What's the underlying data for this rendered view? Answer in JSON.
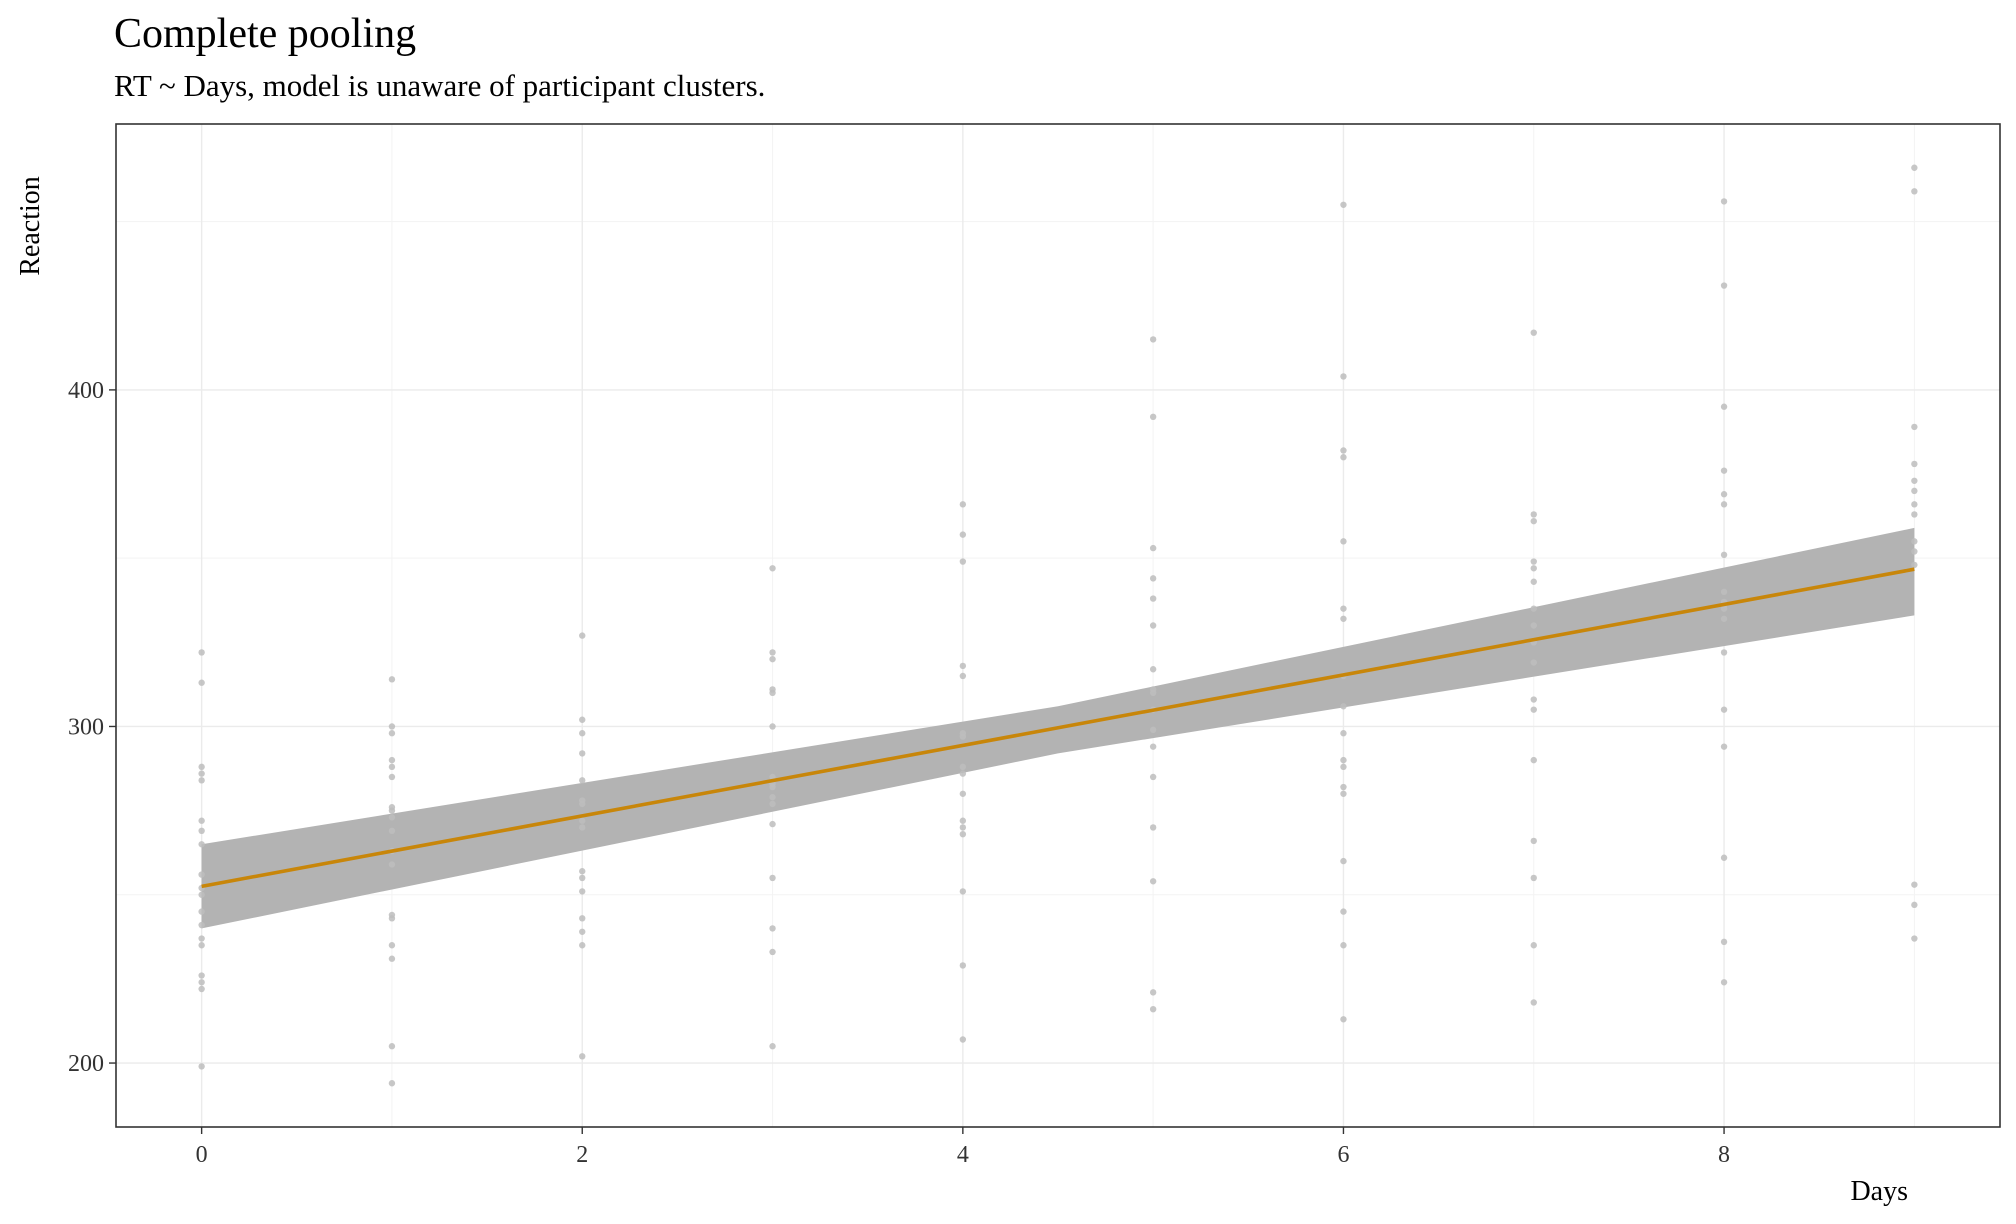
{
  "chart_data": {
    "type": "scatter",
    "title": "Complete pooling",
    "subtitle": "RT ~ Days, model is unaware of participant clusters.",
    "xlabel": "Days",
    "ylabel": "Reaction",
    "xlim": [
      -0.45,
      9.45
    ],
    "ylim": [
      181,
      479
    ],
    "x_ticks": [
      0,
      2,
      4,
      6,
      8
    ],
    "y_ticks": [
      200,
      300,
      400
    ],
    "grid": true,
    "colors": {
      "points": "#bdbdbd",
      "line": "#c8860a",
      "band": "#b3b3b3"
    },
    "fit": {
      "intercept": 252.5,
      "slope": 10.47,
      "ribbon": [
        {
          "x": 0,
          "lower": 240,
          "upper": 265
        },
        {
          "x": 4.5,
          "lower": 292,
          "upper": 306
        },
        {
          "x": 9,
          "lower": 333,
          "upper": 359
        }
      ]
    },
    "points": [
      {
        "x": 0,
        "y": [
          199,
          222,
          224,
          226,
          235,
          237,
          241,
          245,
          250,
          252,
          256,
          265,
          269,
          272,
          284,
          286,
          288,
          313,
          322
        ]
      },
      {
        "x": 1,
        "y": [
          194,
          205,
          231,
          235,
          243,
          244,
          259,
          263,
          269,
          273,
          275,
          276,
          285,
          288,
          290,
          298,
          300,
          314
        ]
      },
      {
        "x": 2,
        "y": [
          202,
          235,
          239,
          243,
          251,
          255,
          257,
          270,
          272,
          277,
          278,
          284,
          292,
          298,
          302,
          327
        ]
      },
      {
        "x": 3,
        "y": [
          205,
          233,
          240,
          255,
          271,
          277,
          279,
          282,
          283,
          285,
          300,
          310,
          311,
          320,
          322,
          347
        ]
      },
      {
        "x": 4,
        "y": [
          207,
          229,
          251,
          268,
          270,
          272,
          280,
          286,
          288,
          297,
          298,
          315,
          318,
          349,
          357,
          366
        ]
      },
      {
        "x": 5,
        "y": [
          216,
          221,
          254,
          270,
          285,
          294,
          299,
          305,
          310,
          311,
          317,
          330,
          338,
          344,
          353,
          392,
          415
        ]
      },
      {
        "x": 6,
        "y": [
          213,
          235,
          245,
          260,
          280,
          282,
          288,
          290,
          298,
          306,
          315,
          332,
          335,
          355,
          380,
          382,
          404,
          455
        ]
      },
      {
        "x": 7,
        "y": [
          218,
          235,
          255,
          266,
          290,
          305,
          308,
          319,
          325,
          330,
          335,
          343,
          347,
          349,
          361,
          363,
          417
        ]
      },
      {
        "x": 8,
        "y": [
          224,
          236,
          261,
          294,
          305,
          322,
          332,
          335,
          336,
          337,
          340,
          351,
          366,
          369,
          376,
          395,
          431,
          456
        ]
      },
      {
        "x": 9,
        "y": [
          237,
          247,
          253,
          348,
          352,
          355,
          363,
          366,
          370,
          373,
          378,
          389,
          459,
          466
        ]
      }
    ]
  }
}
